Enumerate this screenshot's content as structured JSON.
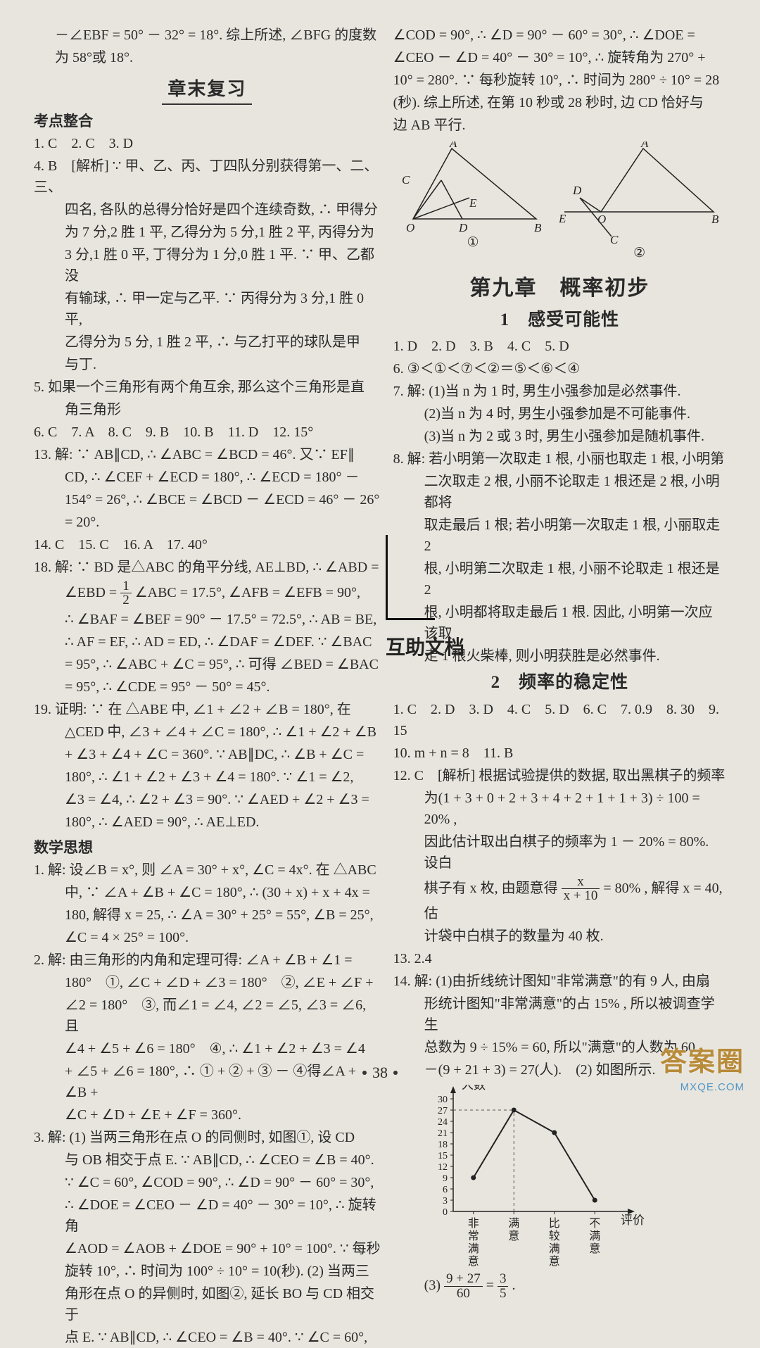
{
  "left": {
    "pre1": "－∠EBF = 50° － 32° = 18°. 综上所述, ∠BFG 的度数",
    "pre2": "为 58°或 18°.",
    "heading": "章末复习",
    "subhead1": "考点整合",
    "ans1": "1. C　2. C　3. D",
    "q4a": "4. B　[解析] ∵ 甲、乙、丙、丁四队分别获得第一、二、三、",
    "q4b": "四名, 各队的总得分恰好是四个连续奇数, ∴ 甲得分",
    "q4c": "为 7 分,2 胜 1 平, 乙得分为 5 分,1 胜 2 平, 丙得分为",
    "q4d": "3 分,1 胜 0 平, 丁得分为 1 分,0 胜 1 平. ∵ 甲、乙都没",
    "q4e": "有输球, ∴ 甲一定与乙平. ∵ 丙得分为 3 分,1 胜 0 平,",
    "q4f": "乙得分为 5 分, 1 胜 2 平, ∴ 与乙打平的球队是甲",
    "q4g": "与丁.",
    "q5a": "5. 如果一个三角形有两个角互余, 那么这个三角形是直",
    "q5b": "角三角形",
    "ans2": "6. C　7. A　8. C　9. B　10. B　11. D　12. 15°",
    "q13a": "13. 解: ∵ AB∥CD, ∴ ∠ABC = ∠BCD = 46°. 又∵ EF∥",
    "q13b": "CD, ∴ ∠CEF + ∠ECD = 180°, ∴ ∠ECD = 180° －",
    "q13c": "154° = 26°, ∴ ∠BCE = ∠BCD － ∠ECD = 46° － 26°",
    "q13d": "= 20°.",
    "ans3": "14. C　15. C　16. A　17. 40°",
    "q18a": "18. 解: ∵ BD 是△ABC 的角平分线, AE⊥BD, ∴ ∠ABD =",
    "q18b_pre": "∠EBD = ",
    "q18b_frac_top": "1",
    "q18b_frac_bot": "2",
    "q18b_post": " ∠ABC = 17.5°, ∠AFB = ∠EFB = 90°,",
    "q18c": "∴ ∠BAF = ∠BEF = 90° － 17.5° = 72.5°, ∴ AB = BE,",
    "q18d": "∴ AF = EF, ∴ AD = ED, ∴ ∠DAF = ∠DEF. ∵ ∠BAC",
    "q18e": "= 95°, ∴ ∠ABC + ∠C = 95°, ∴ 可得 ∠BED = ∠BAC",
    "q18f": "= 95°, ∴ ∠CDE = 95° － 50° = 45°.",
    "q19a": "19. 证明: ∵ 在 △ABE 中, ∠1 + ∠2 + ∠B = 180°, 在",
    "q19b": "△CED 中, ∠3 + ∠4 + ∠C = 180°, ∴ ∠1 + ∠2 + ∠B",
    "q19c": "+ ∠3 + ∠4 + ∠C = 360°. ∵ AB∥DC, ∴ ∠B + ∠C =",
    "q19d": "180°, ∴ ∠1 + ∠2 + ∠3 + ∠4 = 180°. ∵ ∠1 = ∠2,",
    "q19e": "∠3 = ∠4, ∴ ∠2 + ∠3 = 90°. ∵ ∠AED + ∠2 + ∠3 =",
    "q19f": "180°, ∴ ∠AED = 90°, ∴ AE⊥ED.",
    "subhead2": "数学思想",
    "m1a": "1. 解: 设∠B = x°, 则 ∠A = 30° + x°, ∠C = 4x°. 在 △ABC",
    "m1b": "中, ∵ ∠A + ∠B + ∠C = 180°, ∴ (30 + x) + x + 4x =",
    "m1c": "180, 解得 x = 25, ∴ ∠A = 30° + 25° = 55°, ∠B = 25°,",
    "m1d": "∠C = 4 × 25° = 100°.",
    "m2a": "2. 解: 由三角形的内角和定理可得: ∠A + ∠B + ∠1 =",
    "m2b": "180°　①, ∠C + ∠D + ∠3 = 180°　②, ∠E + ∠F +",
    "m2c": "∠2 = 180°　③, 而∠1 = ∠4, ∠2 = ∠5, ∠3 = ∠6, 且",
    "m2d": "∠4 + ∠5 + ∠6 = 180°　④, ∴ ∠1 + ∠2 + ∠3 = ∠4",
    "m2e": "+ ∠5 + ∠6 = 180°, ∴ ① + ② + ③ － ④得∠A + ∠B +",
    "m2f": "∠C + ∠D + ∠E + ∠F = 360°.",
    "m3a": "3. 解: (1) 当两三角形在点 O 的同侧时, 如图①, 设 CD",
    "m3b": "与 OB 相交于点 E. ∵ AB∥CD, ∴ ∠CEO = ∠B = 40°.",
    "m3c": "∵ ∠C = 60°, ∠COD = 90°, ∴ ∠D = 90° － 60° = 30°,",
    "m3d": "∴ ∠DOE = ∠CEO － ∠D = 40° － 30° = 10°, ∴ 旋转角",
    "m3e": "∠AOD = ∠AOB + ∠DOE = 90° + 10° = 100°. ∵ 每秒",
    "m3f": "旋转 10°, ∴ 时间为 100° ÷ 10° = 10(秒). (2) 当两三",
    "m3g": "角形在点 O 的异侧时, 如图②, 延长 BO 与 CD 相交于",
    "m3h": "点 E. ∵ AB∥CD, ∴ ∠CEO = ∠B = 40°. ∵ ∠C = 60°,"
  },
  "right": {
    "r1": "∠COD = 90°, ∴ ∠D = 90° － 60° = 30°, ∴ ∠DOE =",
    "r2": "∠CEO － ∠D = 40° － 30° = 10°, ∴ 旋转角为 270° +",
    "r3": "10° = 280°. ∵ 每秒旋转 10°, ∴ 时间为 280° ÷ 10° = 28",
    "r4": "(秒). 综上所述, 在第 10 秒或 28 秒时, 边 CD 恰好与",
    "r5": "边 AB 平行.",
    "figlabel1": "①",
    "figlabel2": "②",
    "chapter": "第九章　概率初步",
    "sec1": "1　感受可能性",
    "s1ans": "1. D　2. D　3. B　4. C　5. D",
    "s1q6": "6. ③＜①＜⑦＜②＝⑤＜⑥＜④",
    "s1q7a": "7. 解: (1)当 n 为 1 时, 男生小强参加是必然事件.",
    "s1q7b": "(2)当 n 为 4 时, 男生小强参加是不可能事件.",
    "s1q7c": "(3)当 n 为 2 或 3 时, 男生小强参加是随机事件.",
    "s1q8a": "8. 解: 若小明第一次取走 1 根, 小丽也取走 1 根, 小明第",
    "s1q8b": "二次取走 2 根, 小丽不论取走 1 根还是 2 根, 小明都将",
    "s1q8c": "取走最后 1 根; 若小明第一次取走 1 根, 小丽取走 2",
    "s1q8d": "根, 小明第二次取走 1 根, 小丽不论取走 1 根还是 2",
    "s1q8e": "根, 小明都将取走最后 1 根. 因此, 小明第一次应该取",
    "s1q8f": "走 1 根火柴棒, 则小明获胜是必然事件.",
    "sec2": "2　频率的稳定性",
    "s2ans": "1. C　2. D　3. D　4. C　5. D　6. C　7. 0.9　8. 30　9. 15",
    "s2q10": "10. m + n = 8　11. B",
    "s2q12a": "12. C　[解析] 根据试验提供的数据, 取出黑棋子的频率",
    "s2q12b": "为(1 + 3 + 0 + 2 + 3 + 4 + 2 + 1 + 1 + 3) ÷ 100 = 20% ,",
    "s2q12c": "因此估计取出白棋子的频率为 1 － 20% = 80%. 设白",
    "s2q12d_pre": "棋子有 x 枚, 由题意得 ",
    "s2q12d_top": "x",
    "s2q12d_bot": "x + 10",
    "s2q12d_post": " = 80% , 解得 x = 40, 估",
    "s2q12e": "计袋中白棋子的数量为 40 枚.",
    "s2q13": "13. 2.4",
    "s2q14a": "14. 解: (1)由折线统计图知\"非常满意\"的有 9 人, 由扇",
    "s2q14b": "形统计图知\"非常满意\"的占 15% , 所以被调查学生",
    "s2q14c": "总数为 9 ÷ 15% = 60, 所以\"满意\"的人数为 60",
    "s2q14d": "－(9 + 21 + 3) = 27(人).　(2) 如图所示.",
    "chart": {
      "ylabel": "人数",
      "xlabel": "评价",
      "categories": [
        "非常满意",
        "满意",
        "比较满意",
        "不满意"
      ],
      "values": [
        9,
        27,
        21,
        3
      ],
      "yticks": [
        0,
        3,
        6,
        9,
        12,
        15,
        18,
        21,
        24,
        27,
        30
      ],
      "colors": {
        "axis": "#222",
        "line": "#222",
        "marker": "#222",
        "added": "#222"
      }
    },
    "s2q14e_pre": "(3) ",
    "s2q14e_t1": "9 + 27",
    "s2q14e_b1": "60",
    "s2q14e_mid": " = ",
    "s2q14e_t2": "3",
    "s2q14e_b2": "5",
    "s2q14e_post": "."
  },
  "pagenum": "38",
  "annot": "互助文档",
  "watermark": "答案圈",
  "watermark_sub": "MXQE.COM"
}
